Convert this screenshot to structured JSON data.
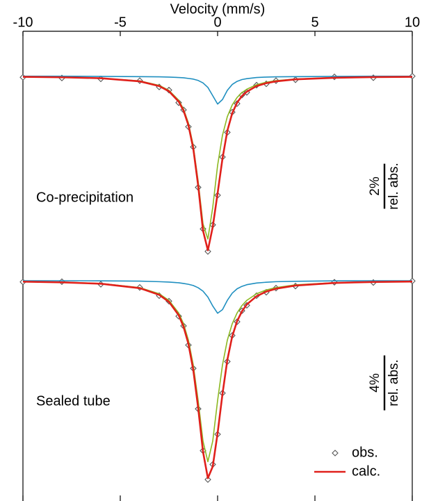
{
  "chart_data": {
    "type": "line",
    "x_label": "Velocity (mm/s)",
    "xlim": [
      -10,
      10
    ],
    "xticks": [
      -10,
      -5,
      0,
      5,
      10
    ],
    "x": [
      -10,
      -8,
      -6,
      -4,
      -3,
      -2.5,
      -2,
      -1.75,
      -1.5,
      -1.25,
      -1,
      -0.75,
      -0.5,
      -0.25,
      0,
      0.25,
      0.5,
      0.75,
      1,
      1.25,
      1.5,
      2,
      2.5,
      3,
      4,
      6,
      8,
      10
    ],
    "panels": [
      {
        "label": "Co-precipitation",
        "ylim": [
          -8.3,
          0.7
        ],
        "scale_bar": {
          "value": 2,
          "label": "2%",
          "unit": "rel. abs."
        },
        "series": [
          {
            "name": "obs.",
            "style": "markers",
            "color": "#555555",
            "values": [
              -0.05,
              -0.08,
              -0.12,
              -0.2,
              -0.48,
              -0.62,
              -1.18,
              -1.5,
              -2.25,
              -3.15,
              -4.95,
              -6.8,
              -7.8,
              -6.62,
              -5.3,
              -3.6,
              -2.5,
              -1.6,
              -1.22,
              -0.84,
              -0.72,
              -0.4,
              -0.34,
              -0.2,
              -0.16,
              -0.03,
              -0.07,
              0.0
            ]
          },
          {
            "style": "line",
            "color": "#8cb821",
            "values": [
              -0.03,
              -0.05,
              -0.09,
              -0.21,
              -0.41,
              -0.63,
              -1.07,
              -1.46,
              -2.08,
              -3.09,
              -4.67,
              -6.57,
              -7.25,
              -5.84,
              -3.97,
              -2.63,
              -1.8,
              -1.28,
              -0.95,
              -0.73,
              -0.58,
              -0.38,
              -0.27,
              -0.2,
              -0.13,
              -0.06,
              -0.04,
              -0.02
            ]
          },
          {
            "style": "line",
            "color": "#1f8fc0",
            "values": [
              0.0,
              0.0,
              -0.01,
              -0.02,
              -0.03,
              -0.04,
              -0.06,
              -0.07,
              -0.1,
              -0.13,
              -0.19,
              -0.3,
              -0.5,
              -0.87,
              -1.24,
              -1.04,
              -0.63,
              -0.37,
              -0.23,
              -0.15,
              -0.11,
              -0.06,
              -0.04,
              -0.03,
              -0.02,
              -0.01,
              0.0,
              0.0
            ]
          },
          {
            "name": "calc.",
            "style": "line",
            "color": "#e0201b",
            "values": [
              -0.03,
              -0.05,
              -0.09,
              -0.23,
              -0.44,
              -0.67,
              -1.13,
              -1.53,
              -2.18,
              -3.22,
              -4.86,
              -6.87,
              -7.75,
              -6.71,
              -5.21,
              -3.67,
              -2.43,
              -1.65,
              -1.18,
              -0.88,
              -0.69,
              -0.44,
              -0.31,
              -0.23,
              -0.14,
              -0.07,
              -0.04,
              -0.03
            ]
          }
        ]
      },
      {
        "label": "Sealed tube",
        "ylim": [
          -15,
          0.8
        ],
        "scale_bar": {
          "value": 4,
          "label": "4%",
          "unit": "rel. abs."
        },
        "series": [
          {
            "name": "obs.",
            "style": "markers",
            "color": "#555555",
            "values": [
              -0.1,
              -0.08,
              -0.27,
              -0.5,
              -1.1,
              -1.5,
              -2.6,
              -3.3,
              -4.7,
              -6.4,
              -9.35,
              -12.4,
              -14.5,
              -13.4,
              -11.2,
              -8.2,
              -5.9,
              -4.0,
              -3.0,
              -2.2,
              -1.8,
              -1.1,
              -0.85,
              -0.55,
              -0.4,
              -0.12,
              -0.14,
              -0.03
            ]
          },
          {
            "style": "line",
            "color": "#8cb821",
            "values": [
              -0.07,
              -0.11,
              -0.21,
              -0.51,
              -0.96,
              -1.44,
              -2.36,
              -3.15,
              -4.34,
              -6.15,
              -8.74,
              -11.7,
              -13.2,
              -11.7,
              -8.74,
              -6.15,
              -4.34,
              -3.15,
              -2.36,
              -1.82,
              -1.44,
              -0.96,
              -0.68,
              -0.51,
              -0.31,
              -0.15,
              -0.09,
              -0.06
            ]
          },
          {
            "style": "line",
            "color": "#1f8fc0",
            "values": [
              -0.01,
              -0.01,
              -0.02,
              -0.04,
              -0.08,
              -0.11,
              -0.16,
              -0.21,
              -0.27,
              -0.36,
              -0.52,
              -0.77,
              -1.2,
              -1.85,
              -2.38,
              -2.12,
              -1.44,
              -0.92,
              -0.6,
              -0.42,
              -0.3,
              -0.18,
              -0.12,
              -0.08,
              -0.05,
              -0.02,
              -0.01,
              -0.01
            ]
          },
          {
            "name": "calc.",
            "style": "line",
            "color": "#e0201b",
            "values": [
              -0.08,
              -0.13,
              -0.23,
              -0.55,
              -1.04,
              -1.55,
              -2.52,
              -3.36,
              -4.61,
              -6.51,
              -9.26,
              -12.47,
              -14.4,
              -13.55,
              -11.12,
              -8.27,
              -5.78,
              -4.07,
              -2.96,
              -2.24,
              -1.74,
              -1.14,
              -0.8,
              -0.59,
              -0.36,
              -0.17,
              -0.1,
              -0.07
            ]
          }
        ]
      }
    ]
  }
}
